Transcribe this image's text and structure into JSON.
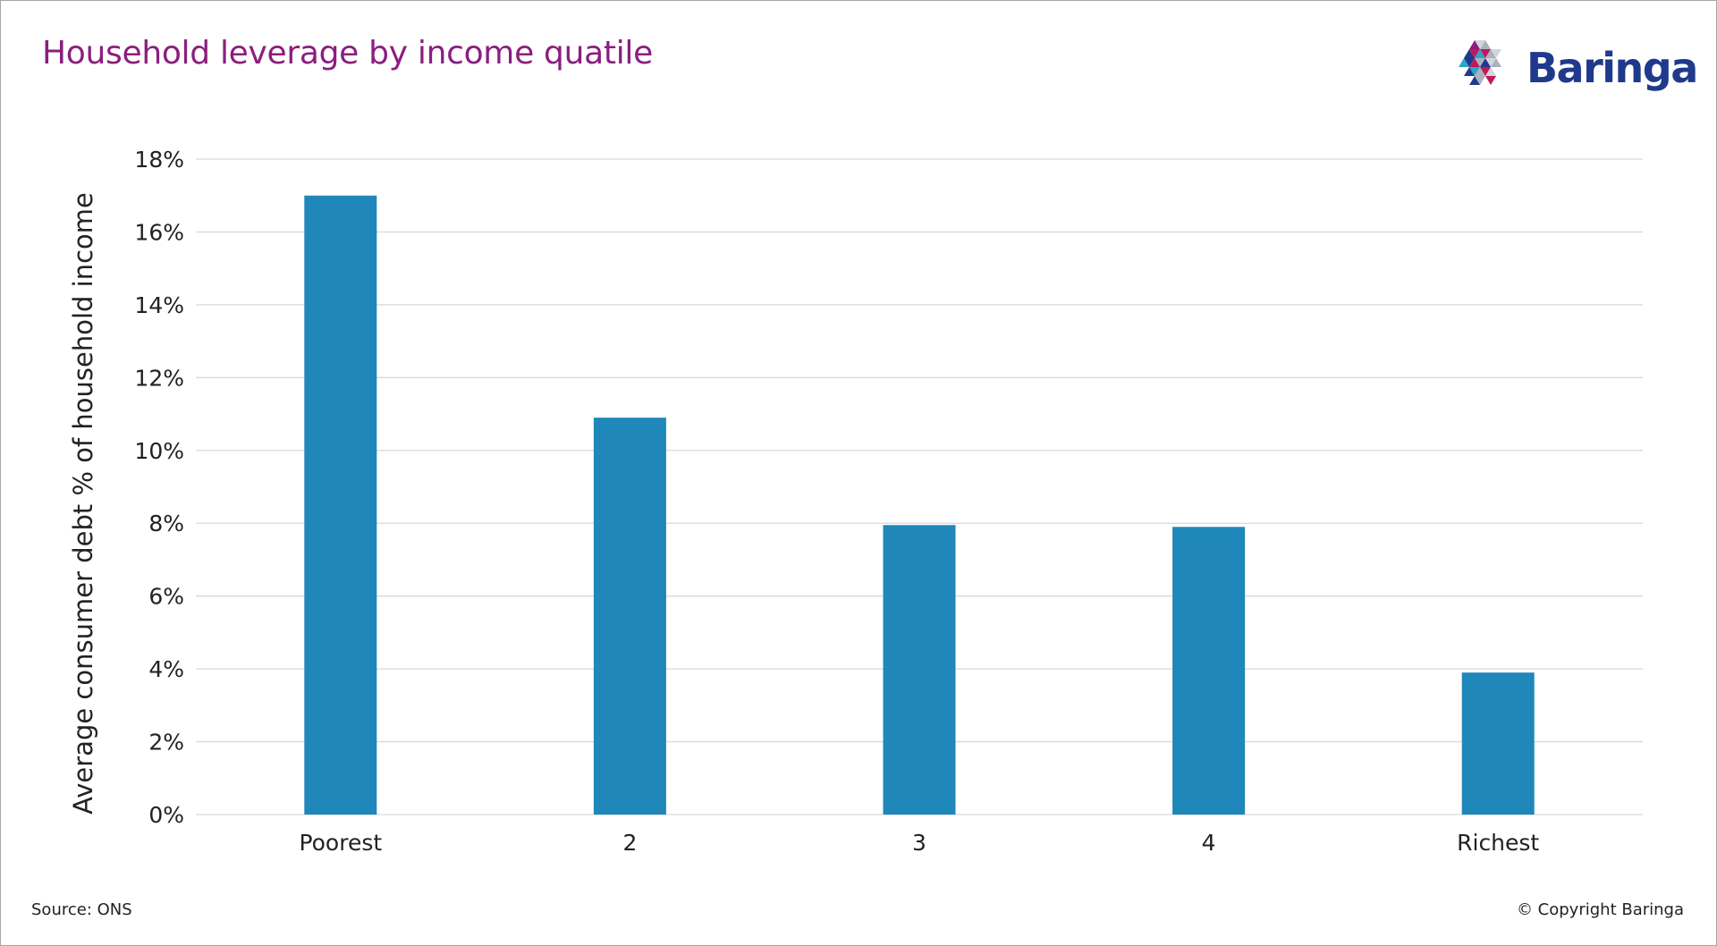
{
  "header": {
    "title": "Household leverage by income quatile"
  },
  "logo": {
    "text": "Baringa",
    "colors": {
      "navy": "#1f3a8c",
      "magenta": "#c2185b",
      "purple": "#8b1e7e",
      "teal": "#2aa6c7",
      "grey": "#a9b3bf"
    }
  },
  "chart_data": {
    "type": "bar",
    "categories": [
      "Poorest",
      "2",
      "3",
      "4",
      "Richest"
    ],
    "values": [
      17.0,
      10.9,
      7.95,
      7.9,
      3.9
    ],
    "ylabel": "Average consumer debt % of household income",
    "xlabel": "",
    "ylim": [
      0,
      18
    ],
    "yticks": [
      0,
      2,
      4,
      6,
      8,
      10,
      12,
      14,
      16,
      18
    ],
    "ytick_labels": [
      "0%",
      "2%",
      "4%",
      "6%",
      "8%",
      "10%",
      "12%",
      "14%",
      "16%",
      "18%"
    ],
    "grid": true,
    "bar_color": "#1f87b9",
    "grid_color": "#d9d9d9"
  },
  "footer": {
    "source": "Source: ONS",
    "copyright": "© Copyright Baringa"
  }
}
